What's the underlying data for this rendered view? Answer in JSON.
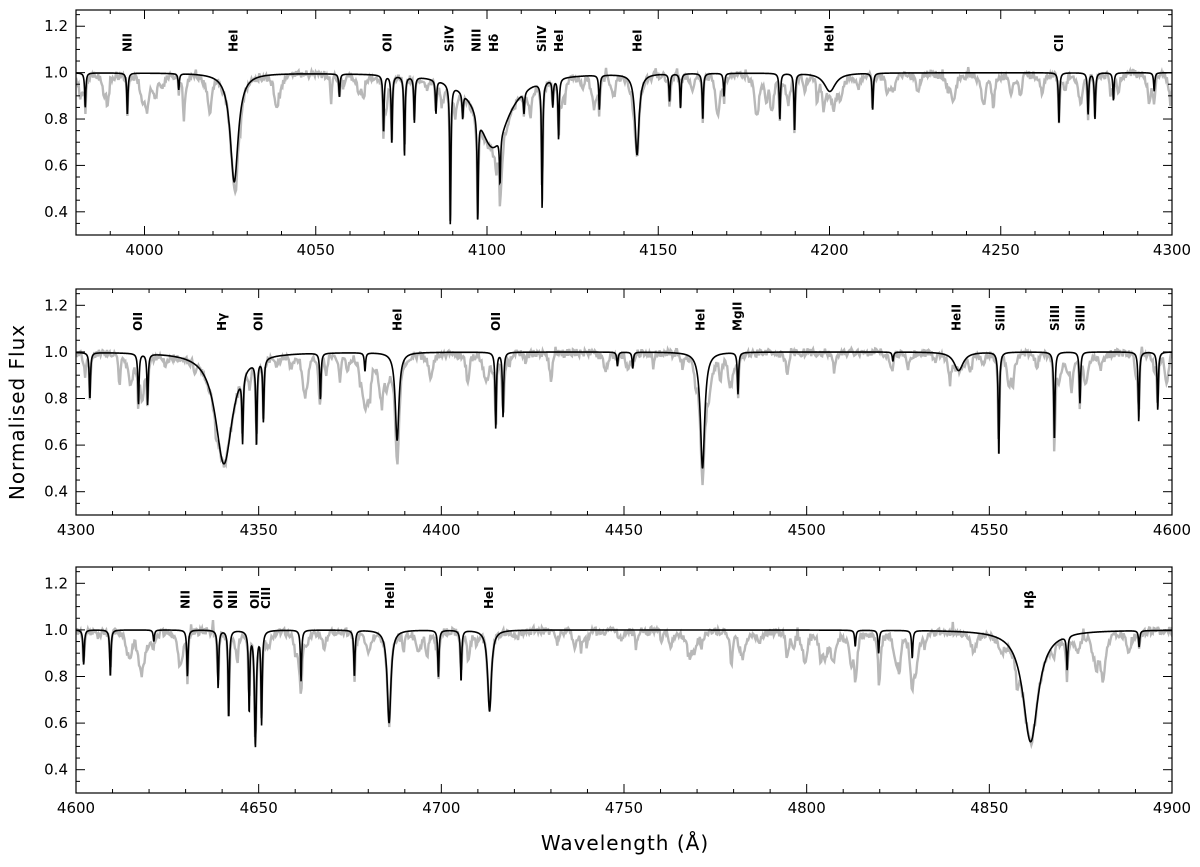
{
  "chart_data": {
    "type": "line",
    "xlabel": "Wavelength (Å)",
    "ylabel": "Normalised Flux",
    "colors": {
      "observed": "#b8b8b8",
      "model": "#000000"
    },
    "legend": [],
    "panels": [
      {
        "xlim": [
          3980,
          4300
        ],
        "ylim": [
          0.3,
          1.27
        ],
        "xticks": [
          4000,
          4050,
          4100,
          4150,
          4200,
          4250,
          4300
        ],
        "yticks": [
          0.4,
          0.6,
          0.8,
          1.0,
          1.2
        ],
        "ytick_labels": [
          "0.4",
          "0.6",
          "0.8",
          "1.0",
          "1.2"
        ],
        "line_labels": [
          {
            "text": "NII",
            "x": 3995
          },
          {
            "text": "HeI",
            "x": 4026
          },
          {
            "text": "OII",
            "x": 4071
          },
          {
            "text": "SiIV",
            "x": 4089
          },
          {
            "text": "NIII",
            "x": 4097
          },
          {
            "text": "Hδ",
            "x": 4102
          },
          {
            "text": "SiIV",
            "x": 4116
          },
          {
            "text": "HeI",
            "x": 4121
          },
          {
            "text": "HeI",
            "x": 4144
          },
          {
            "text": "HeII",
            "x": 4200
          },
          {
            "text": "CII",
            "x": 4267
          }
        ],
        "lines": [
          {
            "x": 4026.2,
            "depth": 0.47,
            "width": 1.4
          },
          {
            "x": 4101.7,
            "depth": 0.32,
            "width": 5.5
          },
          {
            "x": 4200.1,
            "depth": 0.08,
            "width": 2.0
          },
          {
            "x": 4143.8,
            "depth": 0.35,
            "width": 0.7
          },
          {
            "x": 4089.3,
            "depth": 0.64,
            "width": 0.2
          },
          {
            "x": 4097.3,
            "depth": 0.55,
            "width": 0.2
          },
          {
            "x": 4116.1,
            "depth": 0.57,
            "width": 0.2
          },
          {
            "x": 4103.8,
            "depth": 0.28,
            "width": 0.2
          },
          {
            "x": 4120.9,
            "depth": 0.27,
            "width": 0.2
          },
          {
            "x": 4069.8,
            "depth": 0.25,
            "width": 0.2
          },
          {
            "x": 4072.2,
            "depth": 0.3,
            "width": 0.2
          },
          {
            "x": 4075.9,
            "depth": 0.35,
            "width": 0.2
          },
          {
            "x": 4078.8,
            "depth": 0.2,
            "width": 0.2
          },
          {
            "x": 4085.1,
            "depth": 0.15,
            "width": 0.2
          },
          {
            "x": 4092.9,
            "depth": 0.12,
            "width": 0.2
          },
          {
            "x": 4110.8,
            "depth": 0.1,
            "width": 0.2
          },
          {
            "x": 4119.2,
            "depth": 0.12,
            "width": 0.2
          },
          {
            "x": 4132.8,
            "depth": 0.15,
            "width": 0.2
          },
          {
            "x": 4153.3,
            "depth": 0.12,
            "width": 0.2
          },
          {
            "x": 4156.5,
            "depth": 0.15,
            "width": 0.2
          },
          {
            "x": 4163.0,
            "depth": 0.2,
            "width": 0.2
          },
          {
            "x": 4169.2,
            "depth": 0.1,
            "width": 0.2
          },
          {
            "x": 4185.5,
            "depth": 0.2,
            "width": 0.2
          },
          {
            "x": 4189.8,
            "depth": 0.25,
            "width": 0.2
          },
          {
            "x": 4212.6,
            "depth": 0.16,
            "width": 0.2
          },
          {
            "x": 4267.0,
            "depth": 0.22,
            "width": 0.2
          },
          {
            "x": 4275.5,
            "depth": 0.18,
            "width": 0.2
          },
          {
            "x": 4277.5,
            "depth": 0.2,
            "width": 0.2
          },
          {
            "x": 4282.9,
            "depth": 0.12,
            "width": 0.2
          },
          {
            "x": 4294.8,
            "depth": 0.08,
            "width": 0.2
          },
          {
            "x": 3982.7,
            "depth": 0.15,
            "width": 0.2
          },
          {
            "x": 3995.0,
            "depth": 0.18,
            "width": 0.2
          },
          {
            "x": 4010.0,
            "depth": 0.07,
            "width": 0.2
          },
          {
            "x": 4056.9,
            "depth": 0.1,
            "width": 0.2
          }
        ]
      },
      {
        "xlim": [
          4300,
          4600
        ],
        "ylim": [
          0.3,
          1.27
        ],
        "xticks": [
          4300,
          4350,
          4400,
          4450,
          4500,
          4550,
          4600
        ],
        "yticks": [
          0.4,
          0.6,
          0.8,
          1.0,
          1.2
        ],
        "ytick_labels": [
          "0.4",
          "0.6",
          "0.8",
          "1.0",
          "1.2"
        ],
        "line_labels": [
          {
            "text": "OII",
            "x": 4317
          },
          {
            "text": "Hγ",
            "x": 4340
          },
          {
            "text": "OII",
            "x": 4350
          },
          {
            "text": "HeI",
            "x": 4388
          },
          {
            "text": "OII",
            "x": 4415
          },
          {
            "text": "HeI",
            "x": 4471
          },
          {
            "text": "MgII",
            "x": 4481
          },
          {
            "text": "HeII",
            "x": 4541
          },
          {
            "text": "SiIII",
            "x": 4553
          },
          {
            "text": "SiIII",
            "x": 4568
          },
          {
            "text": "SiIII",
            "x": 4575
          }
        ],
        "lines": [
          {
            "x": 4340.5,
            "depth": 0.48,
            "width": 2.8
          },
          {
            "x": 4387.9,
            "depth": 0.38,
            "width": 0.6
          },
          {
            "x": 4471.5,
            "depth": 0.5,
            "width": 0.7
          },
          {
            "x": 4541.6,
            "depth": 0.08,
            "width": 1.5
          },
          {
            "x": 4552.6,
            "depth": 0.45,
            "width": 0.2
          },
          {
            "x": 4567.8,
            "depth": 0.38,
            "width": 0.2
          },
          {
            "x": 4574.8,
            "depth": 0.22,
            "width": 0.2
          },
          {
            "x": 4481.2,
            "depth": 0.18,
            "width": 0.2
          },
          {
            "x": 4414.9,
            "depth": 0.33,
            "width": 0.2
          },
          {
            "x": 4416.9,
            "depth": 0.28,
            "width": 0.2
          },
          {
            "x": 4317.1,
            "depth": 0.22,
            "width": 0.2
          },
          {
            "x": 4319.6,
            "depth": 0.22,
            "width": 0.2
          },
          {
            "x": 4345.6,
            "depth": 0.32,
            "width": 0.2
          },
          {
            "x": 4349.4,
            "depth": 0.38,
            "width": 0.2
          },
          {
            "x": 4351.3,
            "depth": 0.28,
            "width": 0.2
          },
          {
            "x": 4366.9,
            "depth": 0.2,
            "width": 0.2
          },
          {
            "x": 4303.8,
            "depth": 0.2,
            "width": 0.2
          },
          {
            "x": 4379.1,
            "depth": 0.08,
            "width": 0.2
          },
          {
            "x": 4448.2,
            "depth": 0.06,
            "width": 0.2
          },
          {
            "x": 4452.4,
            "depth": 0.07,
            "width": 0.2
          },
          {
            "x": 4590.9,
            "depth": 0.3,
            "width": 0.2
          },
          {
            "x": 4596.1,
            "depth": 0.25,
            "width": 0.2
          },
          {
            "x": 4523.6,
            "depth": 0.04,
            "width": 0.2
          }
        ]
      },
      {
        "xlim": [
          4600,
          4900
        ],
        "ylim": [
          0.3,
          1.27
        ],
        "xticks": [
          4600,
          4650,
          4700,
          4750,
          4800,
          4850,
          4900
        ],
        "yticks": [
          0.4,
          0.6,
          0.8,
          1.0,
          1.2
        ],
        "ytick_labels": [
          "0.4",
          "0.6",
          "0.8",
          "1.0",
          "1.2"
        ],
        "line_labels": [
          {
            "text": "NII",
            "x": 4630
          },
          {
            "text": "OII",
            "x": 4639
          },
          {
            "text": "NII",
            "x": 4643
          },
          {
            "text": "OII",
            "x": 4649
          },
          {
            "text": "CIII",
            "x": 4652
          },
          {
            "text": "HeII",
            "x": 4686
          },
          {
            "text": "HeI",
            "x": 4713
          },
          {
            "text": "Hβ",
            "x": 4861
          }
        ],
        "lines": [
          {
            "x": 4861.3,
            "depth": 0.48,
            "width": 2.5
          },
          {
            "x": 4685.7,
            "depth": 0.4,
            "width": 0.6
          },
          {
            "x": 4713.2,
            "depth": 0.35,
            "width": 0.6
          },
          {
            "x": 4649.1,
            "depth": 0.5,
            "width": 0.3
          },
          {
            "x": 4650.8,
            "depth": 0.4,
            "width": 0.2
          },
          {
            "x": 4647.4,
            "depth": 0.35,
            "width": 0.2
          },
          {
            "x": 4641.8,
            "depth": 0.38,
            "width": 0.2
          },
          {
            "x": 4638.9,
            "depth": 0.25,
            "width": 0.2
          },
          {
            "x": 4630.5,
            "depth": 0.2,
            "width": 0.2
          },
          {
            "x": 4661.6,
            "depth": 0.22,
            "width": 0.2
          },
          {
            "x": 4676.2,
            "depth": 0.2,
            "width": 0.2
          },
          {
            "x": 4699.2,
            "depth": 0.2,
            "width": 0.2
          },
          {
            "x": 4705.4,
            "depth": 0.22,
            "width": 0.2
          },
          {
            "x": 4609.4,
            "depth": 0.2,
            "width": 0.2
          },
          {
            "x": 4602.1,
            "depth": 0.15,
            "width": 0.2
          },
          {
            "x": 4621.3,
            "depth": 0.05,
            "width": 0.2
          },
          {
            "x": 4813.3,
            "depth": 0.07,
            "width": 0.2
          },
          {
            "x": 4819.7,
            "depth": 0.1,
            "width": 0.2
          },
          {
            "x": 4828.9,
            "depth": 0.12,
            "width": 0.2
          },
          {
            "x": 4871.3,
            "depth": 0.15,
            "width": 0.2
          },
          {
            "x": 4891.0,
            "depth": 0.07,
            "width": 0.2
          }
        ]
      }
    ]
  }
}
